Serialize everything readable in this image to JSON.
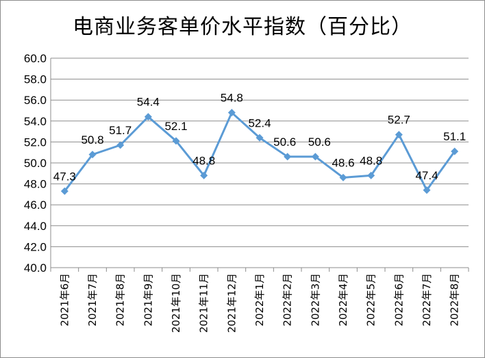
{
  "chart_data": {
    "type": "line",
    "title": "电商业务客单价水平指数（百分比）",
    "xlabel": "",
    "ylabel": "",
    "categories": [
      "2021年6月",
      "2021年7月",
      "2021年8月",
      "2021年9月",
      "2021年10月",
      "2021年11月",
      "2021年12月",
      "2022年1月",
      "2022年2月",
      "2022年3月",
      "2022年4月",
      "2022年5月",
      "2022年6月",
      "2022年7月",
      "2022年8月"
    ],
    "values": [
      47.3,
      50.8,
      51.7,
      54.4,
      52.1,
      48.8,
      54.8,
      52.4,
      50.6,
      50.6,
      48.6,
      48.8,
      52.7,
      47.4,
      51.1
    ],
    "value_labels": [
      "47.3",
      "50.8",
      "51.7",
      "54.4",
      "52.1",
      "48.8",
      "54.8",
      "52.4",
      "50.6",
      "50.6",
      "48.6",
      "48.8",
      "52.7",
      "47.4",
      "51.1"
    ],
    "ylim": [
      40.0,
      60.0
    ],
    "ytick_step": 2,
    "ytick_labels": [
      "40.0",
      "42.0",
      "44.0",
      "46.0",
      "48.0",
      "50.0",
      "52.0",
      "54.0",
      "56.0",
      "58.0",
      "60.0"
    ],
    "grid": true,
    "legend": "none",
    "line_color": "#5B9BD5"
  }
}
